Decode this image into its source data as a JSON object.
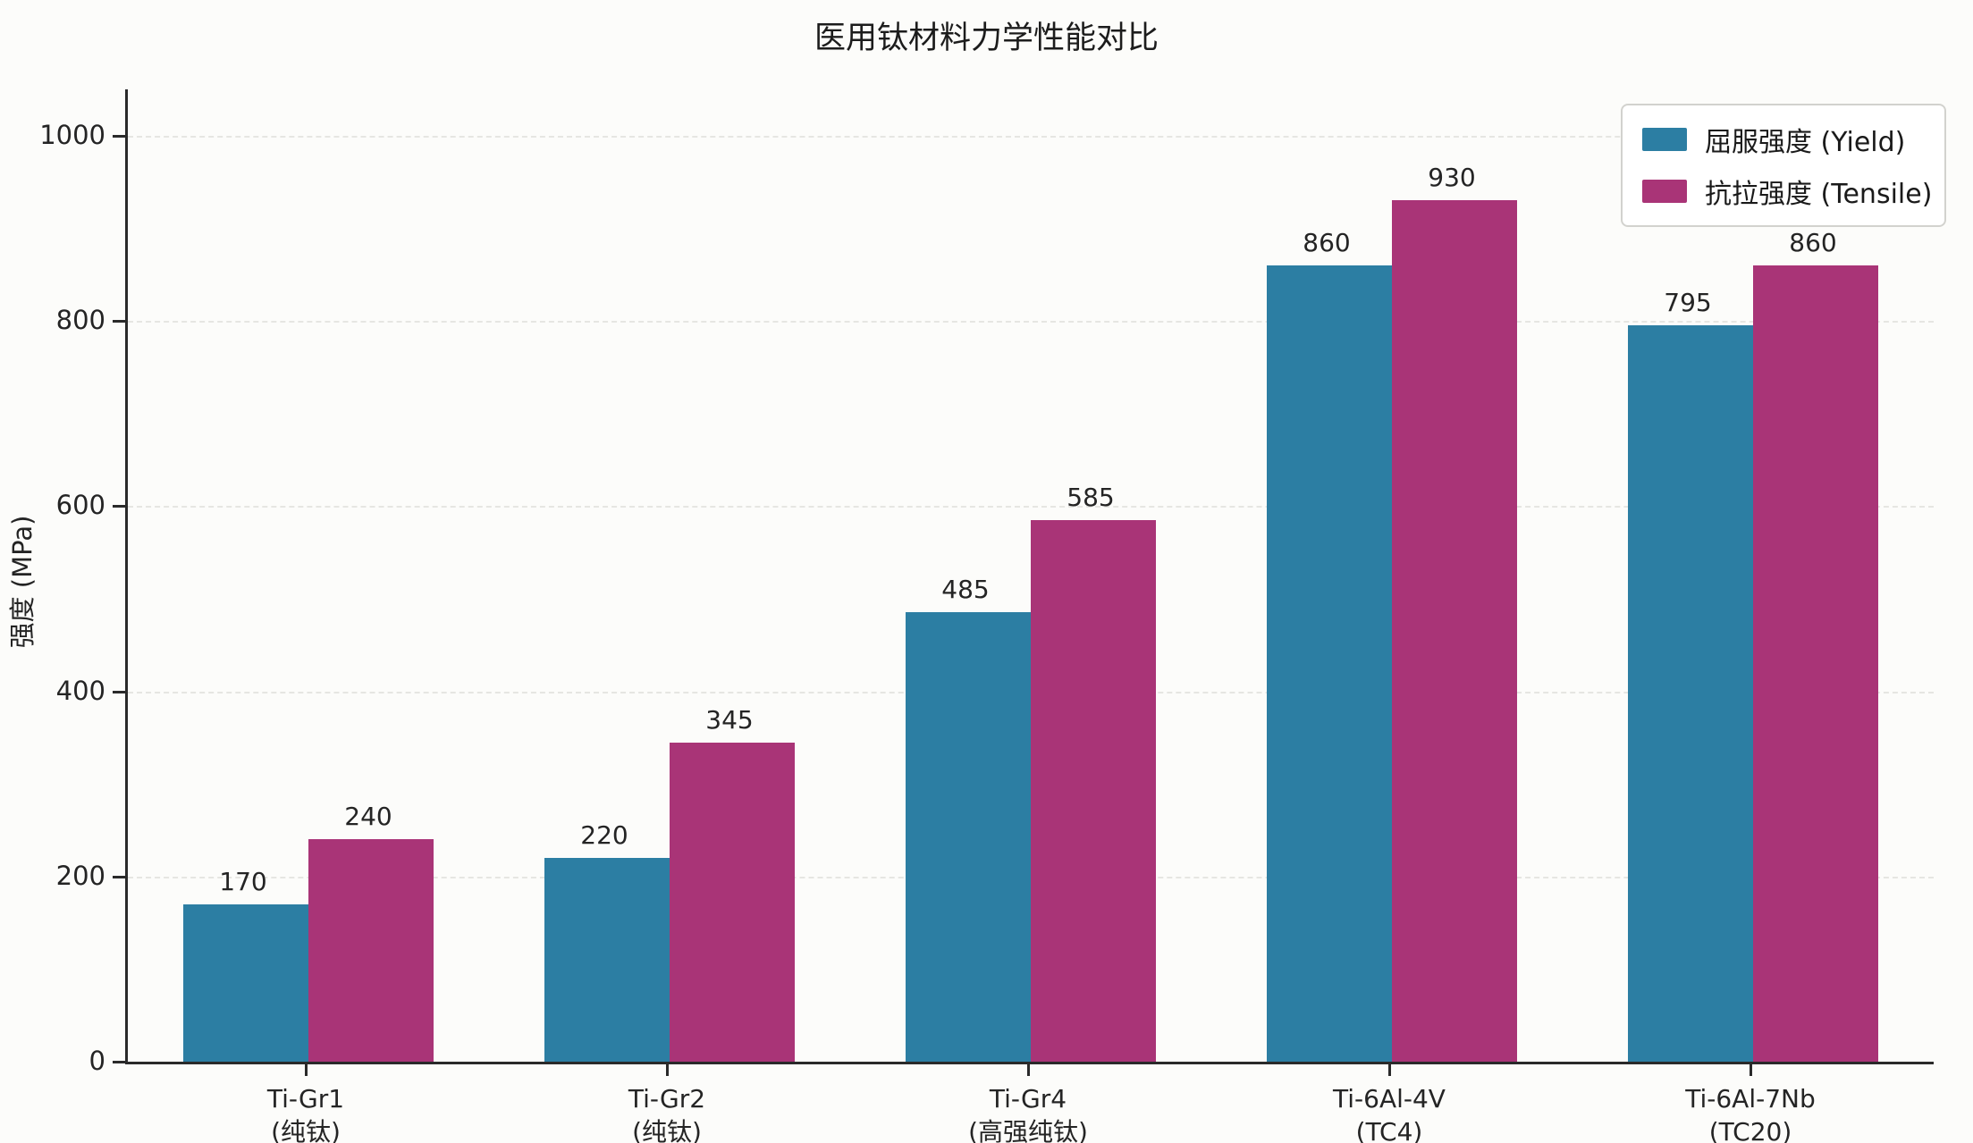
{
  "chart_data": {
    "type": "bar",
    "title": "医用钛材料力学性能对比",
    "ylabel": "强度 (MPa)",
    "xlabel": "",
    "categories": [
      {
        "label": "Ti-Gr1",
        "sublabel": "(纯钛)"
      },
      {
        "label": "Ti-Gr2",
        "sublabel": "(纯钛)"
      },
      {
        "label": "Ti-Gr4",
        "sublabel": "(高强纯钛)"
      },
      {
        "label": "Ti-6Al-4V",
        "sublabel": "(TC4)"
      },
      {
        "label": "Ti-6Al-7Nb",
        "sublabel": "(TC20)"
      }
    ],
    "series": [
      {
        "key": "yield",
        "name": "屈服强度 (Yield)",
        "color": "#2C7EA3",
        "values": [
          170,
          220,
          485,
          860,
          795
        ]
      },
      {
        "key": "tensile",
        "name": "抗拉强度 (Tensile)",
        "color": "#A93477",
        "values": [
          240,
          345,
          585,
          930,
          860
        ]
      }
    ],
    "yticks": [
      0,
      200,
      400,
      600,
      800,
      1000
    ],
    "ylim": [
      0,
      1050
    ],
    "grid": "horizontal-dashed",
    "legend_position": "upper-right",
    "bar_value_labels": true
  }
}
